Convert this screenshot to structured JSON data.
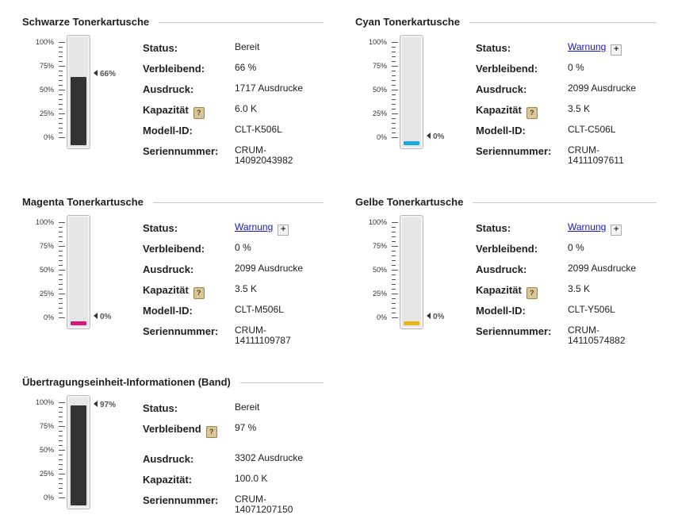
{
  "panels": [
    {
      "title": "Schwarze Tonerkartusche",
      "level_percent": 66,
      "pointer_label": "66%",
      "fill_color": "#333333",
      "status_label": "Status:",
      "status_value": "Bereit",
      "remaining_label": "Verbleibend:",
      "remaining_value": "66 %",
      "prints_label": "Ausdruck:",
      "prints_value": "1717 Ausdrucke",
      "capacity_label": "Kapazität",
      "capacity_value": "6.0 K",
      "model_label": "Modell-ID:",
      "model_value": "CLT-K506L",
      "serial_label": "Seriennummer:",
      "serial_value_1": "CRUM-",
      "serial_value_2": "14092043982"
    },
    {
      "title": "Cyan Tonerkartusche",
      "level_percent": 0,
      "pointer_label": "0%",
      "fill_color": "#1ba8e0",
      "status_label": "Status:",
      "status_value": "Warnung",
      "remaining_label": "Verbleibend:",
      "remaining_value": "0 %",
      "prints_label": "Ausdruck:",
      "prints_value": "2099 Ausdrucke",
      "capacity_label": "Kapazität",
      "capacity_value": "3.5 K",
      "model_label": "Modell-ID:",
      "model_value": "CLT-C506L",
      "serial_label": "Seriennummer:",
      "serial_value_1": "CRUM-",
      "serial_value_2": "14111097611"
    },
    {
      "title": "Magenta Tonerkartusche",
      "level_percent": 0,
      "pointer_label": "0%",
      "fill_color": "#d6197f",
      "status_label": "Status:",
      "status_value": "Warnung",
      "remaining_label": "Verbleibend:",
      "remaining_value": "0 %",
      "prints_label": "Ausdruck:",
      "prints_value": "2099 Ausdrucke",
      "capacity_label": "Kapazität",
      "capacity_value": "3.5 K",
      "model_label": "Modell-ID:",
      "model_value": "CLT-M506L",
      "serial_label": "Seriennummer:",
      "serial_value_1": "CRUM-",
      "serial_value_2": "14111109787"
    },
    {
      "title": "Gelbe Tonerkartusche",
      "level_percent": 0,
      "pointer_label": "0%",
      "fill_color": "#e8b818",
      "status_label": "Status:",
      "status_value": "Warnung",
      "remaining_label": "Verbleibend:",
      "remaining_value": "0 %",
      "prints_label": "Ausdruck:",
      "prints_value": "2099 Ausdrucke",
      "capacity_label": "Kapazität",
      "capacity_value": "3.5 K",
      "model_label": "Modell-ID:",
      "model_value": "CLT-Y506L",
      "serial_label": "Seriennummer:",
      "serial_value_1": "CRUM-",
      "serial_value_2": "14110574882"
    }
  ],
  "transfer": {
    "title": "Übertragungseinheit-Informationen (Band)",
    "level_percent": 97,
    "pointer_label": "97%",
    "fill_color": "#333333",
    "status_label": "Status:",
    "status_value": "Bereit",
    "remaining_label": "Verbleibend",
    "remaining_value": "97 %",
    "prints_label": "Ausdruck:",
    "prints_value": "3302 Ausdrucke",
    "capacity_label": "Kapazität:",
    "capacity_value": "100.0 K",
    "serial_label": "Seriennummer:",
    "serial_value_1": "CRUM-",
    "serial_value_2": "14071207150"
  },
  "ticks": [
    "100%",
    "75%",
    "50%",
    "25%",
    "0%"
  ],
  "help_icon": "question-icon",
  "plus_icon": "+"
}
